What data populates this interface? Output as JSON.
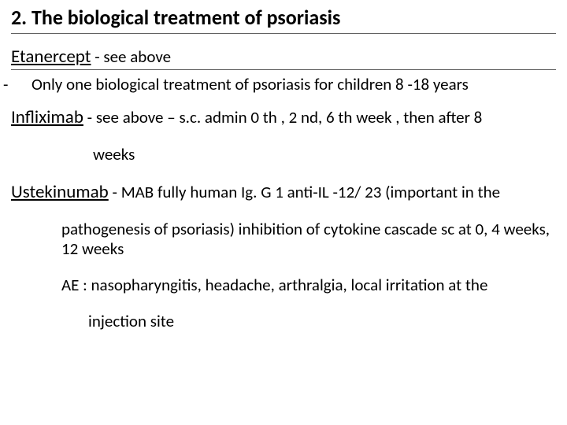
{
  "title": "2. The biological treatment of psoriasis",
  "drug1": {
    "name": "Etanercept",
    "desc": " - see above",
    "bullet": "Only one biological treatment of psoriasis for children 8 -18 years"
  },
  "drug2": {
    "name": "Infliximab",
    "desc": " - see above – s.c. admin 0 th , 2 nd, 6 th week , then after 8",
    "cont": "weeks"
  },
  "drug3": {
    "name": "Ustekinumab",
    "desc": " - MAB fully human Ig. G 1 anti-IL -12/ 23 (important in the",
    "cont1": "pathogenesis of psoriasis) inhibition of cytokine cascade sc at 0, 4 weeks, 12 weeks",
    "cont2a": "AE : nasopharyngitis, headache, arthralgia, local irritation at the",
    "cont2b": "injection site"
  },
  "colors": {
    "background": "#ffffff",
    "text": "#000000",
    "rule": "#606060"
  },
  "typography": {
    "title_size_pt": 26,
    "body_size_pt": 21,
    "drug_name_size_pt": 23,
    "font_family": "Calibri"
  }
}
